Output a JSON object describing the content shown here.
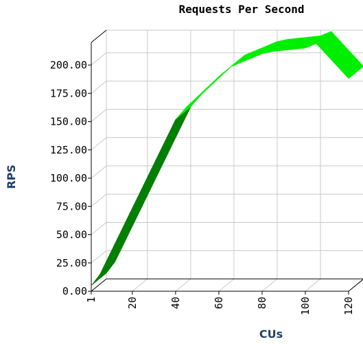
{
  "chart_data": {
    "type": "ribbon3d",
    "title": "Requests Per Second",
    "x_label": "CUs",
    "y_label": "RPS",
    "x": [
      1,
      5,
      40,
      45,
      60,
      65,
      80,
      85,
      100,
      105,
      120
    ],
    "series": [
      {
        "name": "RPS",
        "color": "#00ee00",
        "values": [
          5,
          15,
          152,
          163,
          190,
          198,
          210,
          212,
          215,
          219,
          188
        ]
      }
    ],
    "xlim": [
      1,
      120
    ],
    "xticks": [
      1,
      20,
      40,
      60,
      80,
      100,
      120
    ],
    "ylim": [
      0,
      220
    ],
    "yticks": [
      {
        "value": 0,
        "label": "0.00"
      },
      {
        "value": 25,
        "label": "25.00"
      },
      {
        "value": 50,
        "label": "50.00"
      },
      {
        "value": 75,
        "label": "75.00"
      },
      {
        "value": 100,
        "label": "100.00"
      },
      {
        "value": 125,
        "label": "125.00"
      },
      {
        "value": 150,
        "label": "150.00"
      },
      {
        "value": 175,
        "label": "175.00"
      },
      {
        "value": 200,
        "label": "200.00"
      }
    ],
    "grid": true
  }
}
